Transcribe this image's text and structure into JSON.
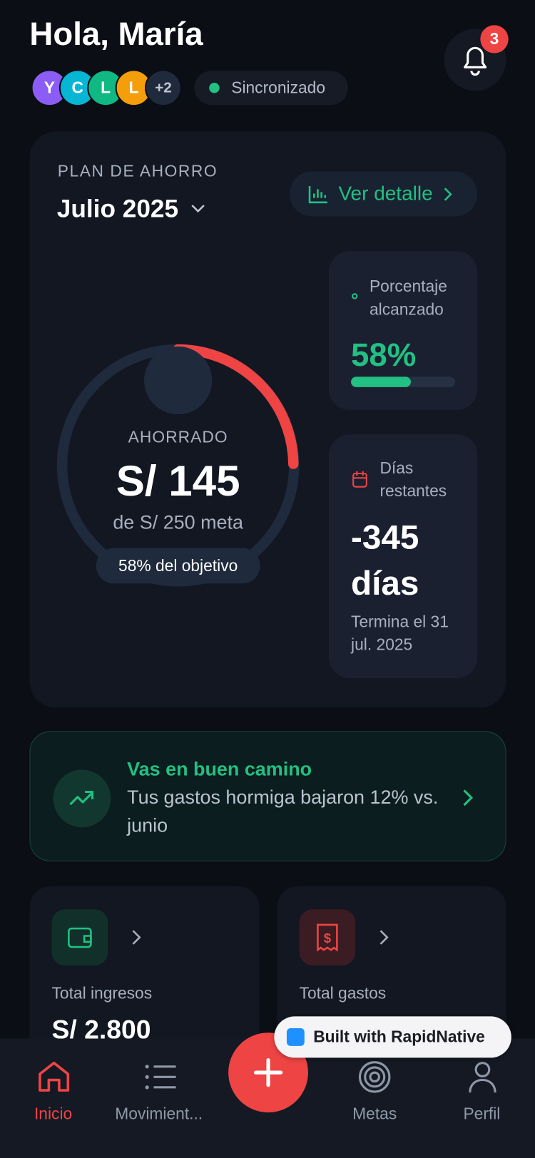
{
  "header": {
    "greeting": "Hola, María",
    "avatars": [
      "Y",
      "C",
      "L",
      "L",
      "+2"
    ],
    "sync": "Sincronizado",
    "notifications": "3"
  },
  "plan": {
    "label": "PLAN DE AHORRO",
    "month": "Julio 2025",
    "detail": "Ver detalle",
    "saved_label": "AHORRADO",
    "saved": "S/ 145",
    "goal": "de S/ 250 meta",
    "goal_pct": "58% del objetivo",
    "percent_card": {
      "title": "Porcentaje alcanzado",
      "value": "58%"
    },
    "days_card": {
      "title": "Días restantes",
      "value": "-345 días",
      "end": "Termina el 31 jul. 2025"
    }
  },
  "banner": {
    "title": "Vas en buen camino",
    "text": "Tus gastos hormiga bajaron 12% vs. junio"
  },
  "cards": [
    {
      "label": "Total ingresos",
      "value": "S/ 2,800"
    },
    {
      "label": "Total gastos"
    }
  ],
  "badge": "Built with RapidNative",
  "nav": [
    "Inicio",
    "Movimient...",
    "Metas",
    "Perfil"
  ]
}
